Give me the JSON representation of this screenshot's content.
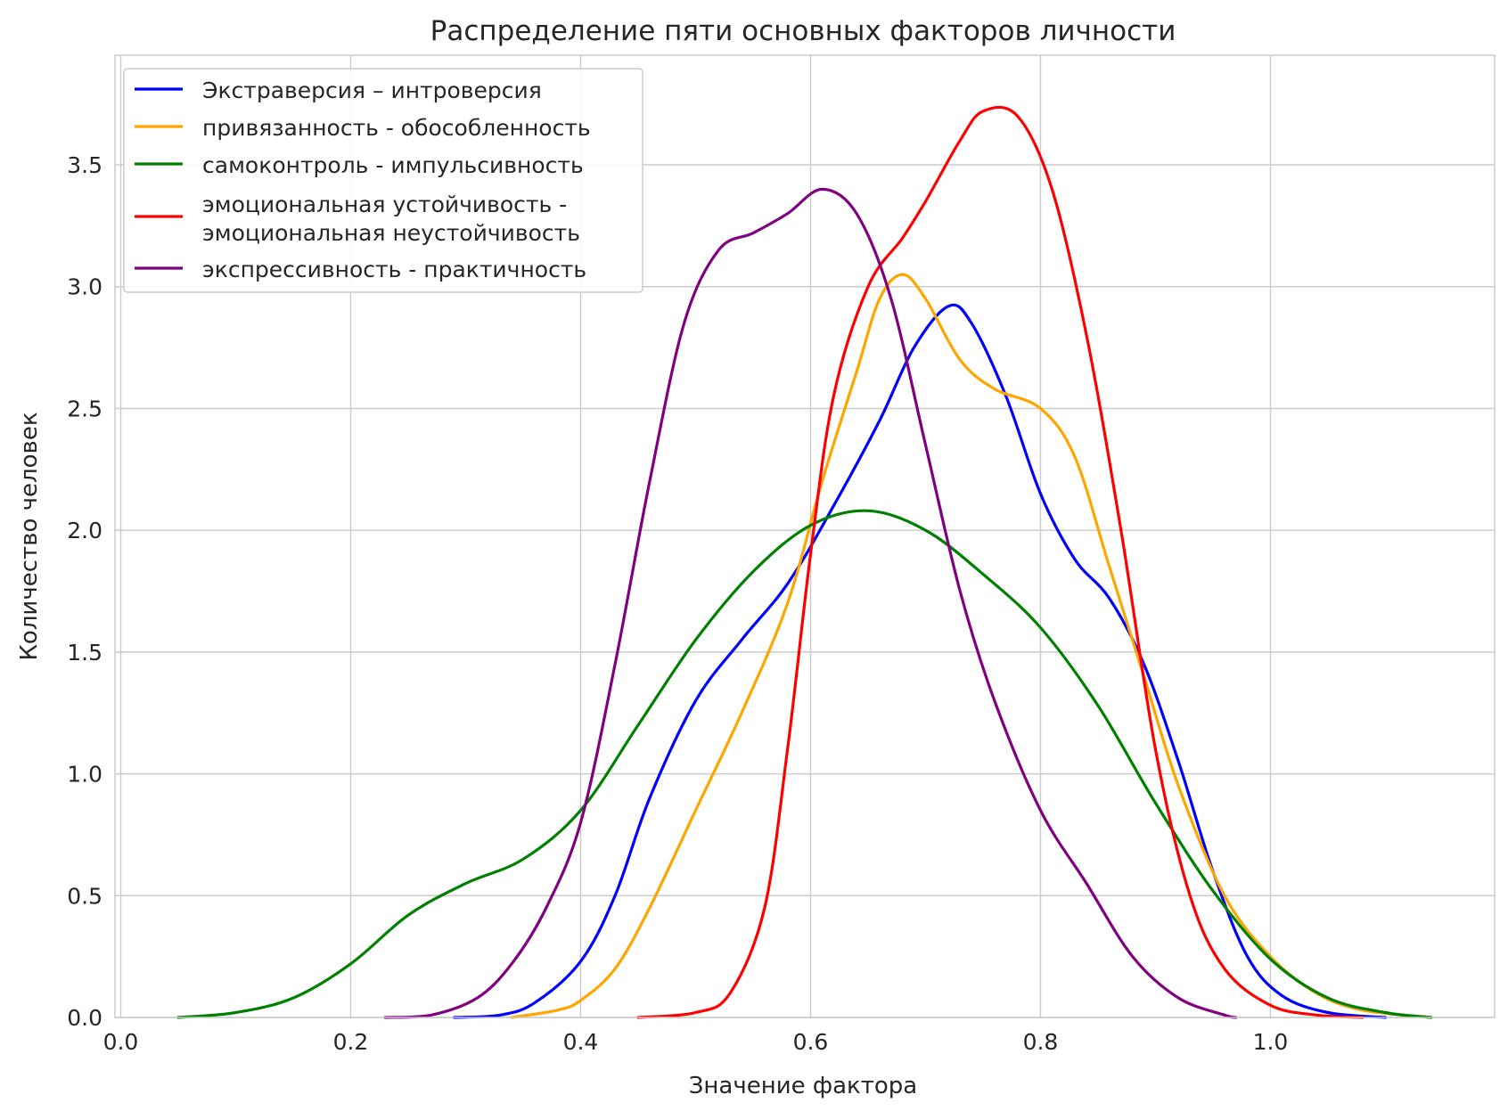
{
  "chart_data": {
    "type": "line",
    "title": "Распределение пяти основных факторов личности",
    "xlabel": "Значение фактора",
    "ylabel": "Количество человек",
    "xlim": [
      -0.005,
      1.195
    ],
    "ylim": [
      0,
      3.95
    ],
    "xticks": [
      0.0,
      0.2,
      0.4,
      0.6,
      0.8,
      1.0
    ],
    "xtick_labels": [
      "0.0",
      "0.2",
      "0.4",
      "0.6",
      "0.8",
      "1.0"
    ],
    "yticks": [
      0.0,
      0.5,
      1.0,
      1.5,
      2.0,
      2.5,
      3.0,
      3.5
    ],
    "ytick_labels": [
      "0.0",
      "0.5",
      "1.0",
      "1.5",
      "2.0",
      "2.5",
      "3.0",
      "3.5"
    ],
    "grid": true,
    "legend_position": "top-left",
    "series": [
      {
        "name": "Экстраверсия – интроверсия",
        "color": "#0000ff",
        "points": [
          [
            0.29,
            0.0
          ],
          [
            0.33,
            0.01
          ],
          [
            0.36,
            0.06
          ],
          [
            0.4,
            0.23
          ],
          [
            0.43,
            0.5
          ],
          [
            0.46,
            0.9
          ],
          [
            0.5,
            1.3
          ],
          [
            0.54,
            1.55
          ],
          [
            0.58,
            1.78
          ],
          [
            0.62,
            2.1
          ],
          [
            0.66,
            2.45
          ],
          [
            0.69,
            2.75
          ],
          [
            0.72,
            2.92
          ],
          [
            0.74,
            2.85
          ],
          [
            0.77,
            2.55
          ],
          [
            0.8,
            2.15
          ],
          [
            0.83,
            1.88
          ],
          [
            0.86,
            1.72
          ],
          [
            0.89,
            1.45
          ],
          [
            0.92,
            1.05
          ],
          [
            0.95,
            0.6
          ],
          [
            0.98,
            0.25
          ],
          [
            1.01,
            0.09
          ],
          [
            1.05,
            0.02
          ],
          [
            1.1,
            0.0
          ]
        ]
      },
      {
        "name": "привязанность - обособленность",
        "color": "#ffa500",
        "points": [
          [
            0.34,
            0.0
          ],
          [
            0.38,
            0.03
          ],
          [
            0.4,
            0.07
          ],
          [
            0.43,
            0.2
          ],
          [
            0.46,
            0.45
          ],
          [
            0.5,
            0.85
          ],
          [
            0.54,
            1.25
          ],
          [
            0.58,
            1.7
          ],
          [
            0.61,
            2.2
          ],
          [
            0.64,
            2.65
          ],
          [
            0.66,
            2.95
          ],
          [
            0.68,
            3.05
          ],
          [
            0.7,
            2.95
          ],
          [
            0.73,
            2.7
          ],
          [
            0.76,
            2.58
          ],
          [
            0.8,
            2.5
          ],
          [
            0.83,
            2.3
          ],
          [
            0.86,
            1.85
          ],
          [
            0.89,
            1.4
          ],
          [
            0.92,
            0.95
          ],
          [
            0.96,
            0.5
          ],
          [
            1.0,
            0.25
          ],
          [
            1.04,
            0.1
          ],
          [
            1.08,
            0.03
          ],
          [
            1.14,
            0.0
          ]
        ]
      },
      {
        "name": "самоконтроль - импульсивность",
        "color": "#008000",
        "points": [
          [
            0.05,
            0.0
          ],
          [
            0.1,
            0.02
          ],
          [
            0.15,
            0.08
          ],
          [
            0.2,
            0.22
          ],
          [
            0.25,
            0.42
          ],
          [
            0.3,
            0.55
          ],
          [
            0.35,
            0.65
          ],
          [
            0.4,
            0.85
          ],
          [
            0.45,
            1.2
          ],
          [
            0.5,
            1.55
          ],
          [
            0.55,
            1.83
          ],
          [
            0.6,
            2.02
          ],
          [
            0.65,
            2.08
          ],
          [
            0.7,
            2.0
          ],
          [
            0.75,
            1.82
          ],
          [
            0.8,
            1.6
          ],
          [
            0.85,
            1.28
          ],
          [
            0.9,
            0.88
          ],
          [
            0.95,
            0.52
          ],
          [
            1.0,
            0.24
          ],
          [
            1.05,
            0.08
          ],
          [
            1.1,
            0.02
          ],
          [
            1.14,
            0.0
          ]
        ]
      },
      {
        "name": "эмоциональная устойчивость -\nэмоциональная неустойчивость",
        "color": "#ff0000",
        "points": [
          [
            0.45,
            0.0
          ],
          [
            0.5,
            0.02
          ],
          [
            0.53,
            0.1
          ],
          [
            0.56,
            0.45
          ],
          [
            0.58,
            1.1
          ],
          [
            0.6,
            1.9
          ],
          [
            0.62,
            2.55
          ],
          [
            0.65,
            3.0
          ],
          [
            0.68,
            3.2
          ],
          [
            0.7,
            3.35
          ],
          [
            0.73,
            3.6
          ],
          [
            0.75,
            3.72
          ],
          [
            0.78,
            3.7
          ],
          [
            0.81,
            3.4
          ],
          [
            0.84,
            2.8
          ],
          [
            0.87,
            2.0
          ],
          [
            0.9,
            1.1
          ],
          [
            0.93,
            0.5
          ],
          [
            0.96,
            0.2
          ],
          [
            1.0,
            0.05
          ],
          [
            1.04,
            0.01
          ],
          [
            1.08,
            0.0
          ]
        ]
      },
      {
        "name": "экспрессивность - практичность",
        "color": "#800080",
        "points": [
          [
            0.23,
            0.0
          ],
          [
            0.27,
            0.01
          ],
          [
            0.31,
            0.08
          ],
          [
            0.34,
            0.22
          ],
          [
            0.37,
            0.45
          ],
          [
            0.4,
            0.8
          ],
          [
            0.43,
            1.45
          ],
          [
            0.46,
            2.2
          ],
          [
            0.49,
            2.85
          ],
          [
            0.52,
            3.15
          ],
          [
            0.55,
            3.22
          ],
          [
            0.58,
            3.3
          ],
          [
            0.61,
            3.4
          ],
          [
            0.64,
            3.3
          ],
          [
            0.67,
            2.95
          ],
          [
            0.7,
            2.35
          ],
          [
            0.73,
            1.75
          ],
          [
            0.76,
            1.3
          ],
          [
            0.8,
            0.85
          ],
          [
            0.84,
            0.55
          ],
          [
            0.88,
            0.25
          ],
          [
            0.92,
            0.08
          ],
          [
            0.96,
            0.01
          ],
          [
            0.97,
            0.0
          ]
        ]
      }
    ]
  }
}
